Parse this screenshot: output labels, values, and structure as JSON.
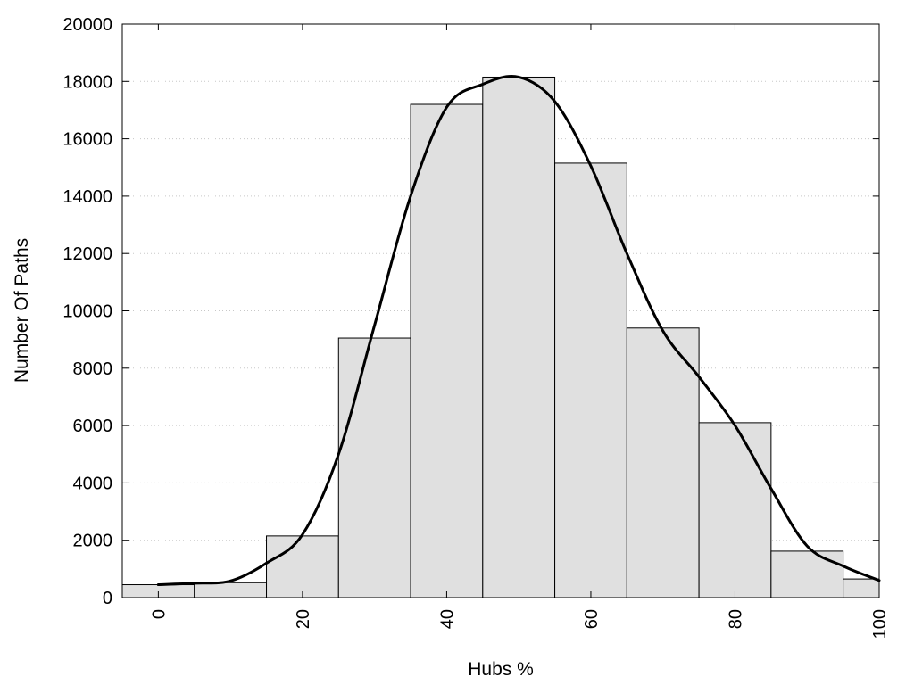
{
  "chart_data": {
    "type": "bar",
    "title": "",
    "xlabel": "Hubs %",
    "ylabel": "Number Of Paths",
    "xlim": [
      -5,
      100
    ],
    "ylim": [
      0,
      20000
    ],
    "x_ticks": [
      0,
      20,
      40,
      60,
      80,
      100
    ],
    "y_ticks": [
      0,
      2000,
      4000,
      6000,
      8000,
      10000,
      12000,
      14000,
      16000,
      18000,
      20000
    ],
    "grid": "horizontal dotted",
    "bin_width": 10,
    "bars": [
      {
        "center": 0,
        "value": 450
      },
      {
        "center": 10,
        "value": 520
      },
      {
        "center": 20,
        "value": 2150
      },
      {
        "center": 30,
        "value": 9050
      },
      {
        "center": 40,
        "value": 17200
      },
      {
        "center": 50,
        "value": 18150
      },
      {
        "center": 60,
        "value": 15150
      },
      {
        "center": 70,
        "value": 9400
      },
      {
        "center": 80,
        "value": 6100
      },
      {
        "center": 90,
        "value": 1620
      },
      {
        "center": 100,
        "value": 650
      }
    ],
    "curve": {
      "x": [
        0,
        5,
        10,
        15,
        20,
        25,
        30,
        35,
        40,
        45,
        50,
        55,
        60,
        65,
        70,
        75,
        80,
        85,
        90,
        95,
        100
      ],
      "y": [
        450,
        500,
        580,
        1200,
        2200,
        5000,
        9500,
        14000,
        17100,
        17900,
        18150,
        17300,
        15050,
        12000,
        9300,
        7700,
        6000,
        3800,
        1800,
        1100,
        600
      ]
    },
    "colors": {
      "bar_fill": "#e0e0e0",
      "bar_stroke": "#000000",
      "curve": "#000000",
      "grid": "#c8c8c8"
    }
  }
}
